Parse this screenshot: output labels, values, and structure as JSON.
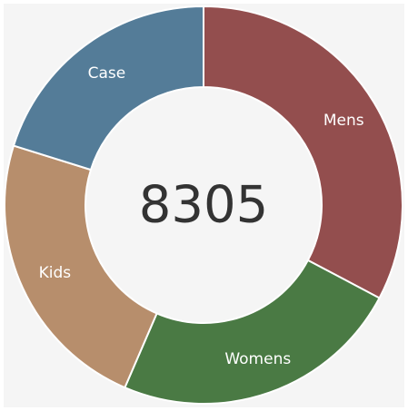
{
  "chart_data": {
    "type": "pie",
    "donut": true,
    "total_label": "8305",
    "categories": [
      "Mens",
      "Womens",
      "Kids",
      "Case"
    ],
    "values": [
      2720,
      1970,
      1940,
      1675
    ],
    "colors": [
      "#934e4e",
      "#4a7a44",
      "#b78e6c",
      "#547c98"
    ],
    "start_angle_deg": 0,
    "direction": "clockwise",
    "background": "#f5f5f5"
  }
}
